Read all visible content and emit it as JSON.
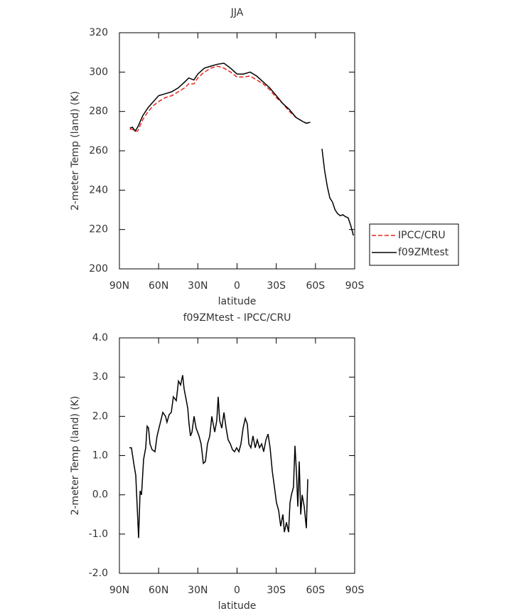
{
  "chart_data": [
    {
      "type": "line",
      "title": "JJA",
      "xlabel": "latitude",
      "ylabel": "2-meter Temp (land) (K)",
      "xlim": [
        90,
        -90
      ],
      "xticks": [
        {
          "value": 90,
          "label": "90N"
        },
        {
          "value": 60,
          "label": "60N"
        },
        {
          "value": 30,
          "label": "30N"
        },
        0,
        {
          "value": -30,
          "label": "30S"
        },
        {
          "value": -60,
          "label": "60S"
        },
        {
          "value": -90,
          "label": "90S"
        }
      ],
      "ylim": [
        200,
        320
      ],
      "yticks": [
        200,
        220,
        240,
        260,
        280,
        300,
        320
      ],
      "legend": "right",
      "x": [
        82,
        80,
        78,
        76,
        72,
        68,
        64,
        60,
        55,
        50,
        45,
        40,
        37,
        33,
        30,
        25,
        20,
        15,
        10,
        5,
        0,
        -5,
        -10,
        -15,
        -20,
        -25,
        -30,
        -35,
        -40,
        -45,
        -50,
        -53,
        -56,
        -60,
        -65,
        -67,
        -69,
        -71,
        -73,
        -75,
        -77,
        -79,
        -81,
        -83,
        -85,
        -87,
        -89
      ],
      "series": [
        {
          "name": "IPCC/CRU",
          "color": "#e8241c",
          "dashed": true,
          "values": [
            271,
            271,
            270,
            270,
            276,
            280,
            283,
            285,
            287,
            288,
            290,
            292,
            294,
            294,
            297,
            300,
            302,
            303,
            302,
            300,
            297.5,
            297.5,
            298,
            296,
            294,
            291,
            287,
            284,
            280,
            277,
            275,
            274,
            274.5,
            null,
            null,
            null,
            null,
            null,
            null,
            null,
            null,
            null,
            null,
            null,
            null,
            null,
            null
          ]
        },
        {
          "name": "f09ZMtest",
          "color": "#000000",
          "dashed": false,
          "values": [
            271.5,
            272,
            270,
            272,
            278,
            282,
            285,
            288,
            289,
            290,
            292,
            295,
            297,
            296,
            299,
            302,
            303,
            304,
            304.5,
            302,
            299,
            299,
            300,
            298,
            295,
            292,
            288,
            284,
            281,
            277,
            275,
            274,
            274.5,
            null,
            261,
            250,
            242,
            236,
            234,
            230,
            228,
            227,
            227.5,
            226.5,
            226,
            222,
            217
          ]
        }
      ]
    },
    {
      "type": "line",
      "title": "f09ZMtest - IPCC/CRU",
      "xlabel": "latitude",
      "ylabel": "2-meter Temp (land) (K)",
      "xlim": [
        90,
        -90
      ],
      "xticks": [
        {
          "value": 90,
          "label": "90N"
        },
        {
          "value": 60,
          "label": "60N"
        },
        {
          "value": 30,
          "label": "30N"
        },
        0,
        {
          "value": -30,
          "label": "30S"
        },
        {
          "value": -60,
          "label": "60S"
        },
        {
          "value": -90,
          "label": "90S"
        }
      ],
      "ylim": [
        -2,
        4
      ],
      "yticks": [
        {
          "value": -2,
          "label": "-2.0"
        },
        {
          "value": -1,
          "label": "-1.0"
        },
        {
          "value": 0,
          "label": "0.0"
        },
        {
          "value": 1,
          "label": "1.0"
        },
        {
          "value": 2,
          "label": "2.0"
        },
        {
          "value": 3,
          "label": "3.0"
        },
        {
          "value": 4,
          "label": "4.0"
        }
      ],
      "x": [
        82.4,
        80.8,
        79,
        77.5,
        76.4,
        75.3,
        74.2,
        73.1,
        71.5,
        69.9,
        68.8,
        67.7,
        66.6,
        65,
        62.8,
        61.2,
        59,
        56.8,
        54.7,
        53.6,
        51.9,
        50.3,
        48.7,
        46.5,
        44.8,
        43.2,
        41.6,
        40.5,
        38.8,
        37.7,
        36.7,
        35.6,
        34.5,
        32.9,
        31.3,
        29.1,
        27.5,
        25.8,
        24.2,
        22.6,
        20.9,
        19.3,
        17.1,
        15.5,
        14.4,
        13.3,
        11.7,
        10,
        8.4,
        6.8,
        5.1,
        3.5,
        1.9,
        0.3,
        -1.4,
        -3,
        -4.6,
        -6.3,
        -7.9,
        -9,
        -10.6,
        -12.2,
        -13.9,
        -15.5,
        -17.2,
        -18.8,
        -20.4,
        -22.1,
        -23.7,
        -25.3,
        -27,
        -28.6,
        -30.2,
        -31.8,
        -33.4,
        -35.1,
        -36.2,
        -37.8,
        -39.4,
        -40.5,
        -41.6,
        -43.2,
        -44.3,
        -45.4,
        -46.5,
        -47.6,
        -48.7,
        -49.8,
        -51.4,
        -53,
        -54.1
      ],
      "series": [
        {
          "color": "#000000",
          "dashed": false,
          "values": [
            1.2,
            1.2,
            0.8,
            0.5,
            -0.3,
            -1.1,
            0.1,
            0.0,
            0.9,
            1.2,
            1.75,
            1.7,
            1.3,
            1.15,
            1.1,
            1.5,
            1.8,
            2.1,
            2.0,
            1.85,
            2.05,
            2.1,
            2.5,
            2.4,
            2.9,
            2.8,
            3.05,
            2.7,
            2.4,
            2.2,
            1.8,
            1.5,
            1.6,
            2.0,
            1.7,
            1.5,
            1.3,
            0.8,
            0.85,
            1.3,
            1.5,
            2.0,
            1.6,
            1.9,
            2.5,
            1.9,
            1.7,
            2.1,
            1.7,
            1.4,
            1.3,
            1.15,
            1.1,
            1.2,
            1.1,
            1.3,
            1.7,
            1.95,
            1.8,
            1.3,
            1.2,
            1.5,
            1.2,
            1.4,
            1.2,
            1.3,
            1.1,
            1.4,
            1.55,
            1.2,
            0.6,
            0.2,
            -0.2,
            -0.4,
            -0.8,
            -0.5,
            -0.95,
            -0.7,
            -0.95,
            -0.2,
            0.0,
            0.2,
            1.25,
            0.6,
            -0.3,
            0.85,
            -0.5,
            0.0,
            -0.3,
            -0.85,
            0.4
          ]
        }
      ]
    }
  ]
}
